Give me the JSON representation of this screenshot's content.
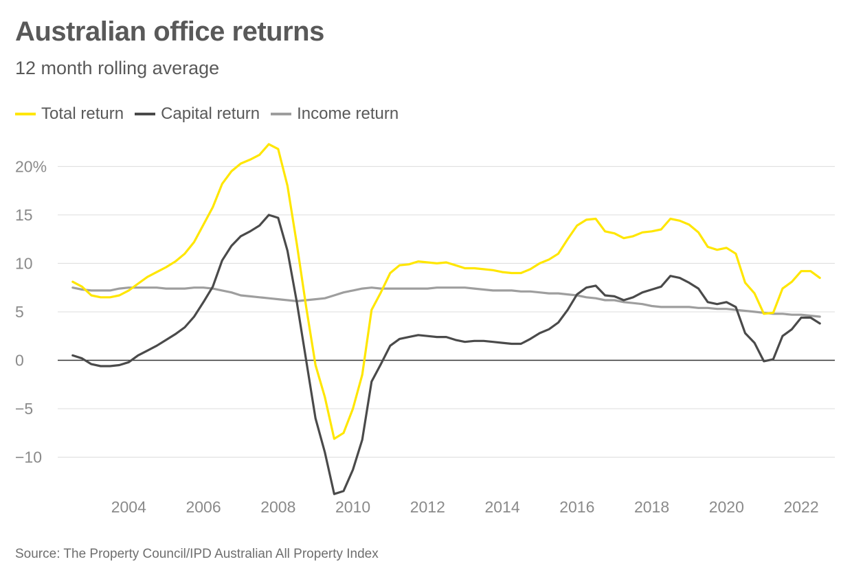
{
  "chart_data": {
    "type": "line",
    "title": "Australian office returns",
    "subtitle": "12 month rolling average",
    "source": "Source: The Property Council/IPD Australian All Property Index",
    "xlabel": "",
    "ylabel": "",
    "xlim": [
      2002.1,
      2022.9
    ],
    "ylim": [
      -14,
      23
    ],
    "y_ticks": [
      -10,
      -5,
      0,
      5,
      10,
      15,
      20
    ],
    "y_tick_labels": [
      "−10",
      "−5",
      "0",
      "5",
      "10",
      "15",
      "20%"
    ],
    "x_ticks": [
      2004,
      2006,
      2008,
      2010,
      2012,
      2014,
      2016,
      2018,
      2020,
      2022
    ],
    "x_tick_labels": [
      "2004",
      "2006",
      "2008",
      "2010",
      "2012",
      "2014",
      "2016",
      "2018",
      "2020",
      "2022"
    ],
    "grid": true,
    "legend_position": "top-left",
    "series": [
      {
        "name": "Total return",
        "color": "#ffe600",
        "x": [
          2002.5,
          2002.75,
          2003.0,
          2003.25,
          2003.5,
          2003.75,
          2004.0,
          2004.25,
          2004.5,
          2004.75,
          2005.0,
          2005.25,
          2005.5,
          2005.75,
          2006.0,
          2006.25,
          2006.5,
          2006.75,
          2007.0,
          2007.25,
          2007.5,
          2007.75,
          2008.0,
          2008.25,
          2008.5,
          2008.75,
          2009.0,
          2009.25,
          2009.5,
          2009.75,
          2010.0,
          2010.25,
          2010.5,
          2010.75,
          2011.0,
          2011.25,
          2011.5,
          2011.75,
          2012.0,
          2012.25,
          2012.5,
          2012.75,
          2013.0,
          2013.25,
          2013.5,
          2013.75,
          2014.0,
          2014.25,
          2014.5,
          2014.75,
          2015.0,
          2015.25,
          2015.5,
          2015.75,
          2016.0,
          2016.25,
          2016.5,
          2016.75,
          2017.0,
          2017.25,
          2017.5,
          2017.75,
          2018.0,
          2018.25,
          2018.5,
          2018.75,
          2019.0,
          2019.25,
          2019.5,
          2019.75,
          2020.0,
          2020.25,
          2020.5,
          2020.75,
          2021.0,
          2021.25,
          2021.5,
          2021.75,
          2022.0,
          2022.25,
          2022.5
        ],
        "values": [
          8.1,
          7.6,
          6.7,
          6.5,
          6.5,
          6.7,
          7.2,
          7.9,
          8.6,
          9.1,
          9.6,
          10.2,
          11.0,
          12.2,
          14.0,
          15.8,
          18.2,
          19.5,
          20.3,
          20.7,
          21.2,
          22.3,
          21.8,
          18.0,
          12.0,
          5.5,
          -0.5,
          -3.8,
          -8.1,
          -7.5,
          -5.0,
          -1.5,
          5.2,
          7.0,
          9.0,
          9.8,
          9.9,
          10.2,
          10.1,
          10.0,
          10.1,
          9.8,
          9.5,
          9.5,
          9.4,
          9.3,
          9.1,
          9.0,
          9.0,
          9.4,
          10.0,
          10.4,
          11.0,
          12.5,
          13.9,
          14.5,
          14.6,
          13.3,
          13.1,
          12.6,
          12.8,
          13.2,
          13.3,
          13.5,
          14.6,
          14.4,
          14.0,
          13.2,
          11.7,
          11.4,
          11.6,
          11.0,
          8.0,
          6.9,
          4.8,
          4.9,
          7.4,
          8.1,
          9.2,
          9.2,
          8.5
        ]
      },
      {
        "name": "Capital return",
        "color": "#4a4a4a",
        "x": [
          2002.5,
          2002.75,
          2003.0,
          2003.25,
          2003.5,
          2003.75,
          2004.0,
          2004.25,
          2004.5,
          2004.75,
          2005.0,
          2005.25,
          2005.5,
          2005.75,
          2006.0,
          2006.25,
          2006.5,
          2006.75,
          2007.0,
          2007.25,
          2007.5,
          2007.75,
          2008.0,
          2008.25,
          2008.5,
          2008.75,
          2009.0,
          2009.25,
          2009.5,
          2009.75,
          2010.0,
          2010.25,
          2010.5,
          2010.75,
          2011.0,
          2011.25,
          2011.5,
          2011.75,
          2012.0,
          2012.25,
          2012.5,
          2012.75,
          2013.0,
          2013.25,
          2013.5,
          2013.75,
          2014.0,
          2014.25,
          2014.5,
          2014.75,
          2015.0,
          2015.25,
          2015.5,
          2015.75,
          2016.0,
          2016.25,
          2016.5,
          2016.75,
          2017.0,
          2017.25,
          2017.5,
          2017.75,
          2018.0,
          2018.25,
          2018.5,
          2018.75,
          2019.0,
          2019.25,
          2019.5,
          2019.75,
          2020.0,
          2020.25,
          2020.5,
          2020.75,
          2021.0,
          2021.25,
          2021.5,
          2021.75,
          2022.0,
          2022.25,
          2022.5
        ],
        "values": [
          0.5,
          0.2,
          -0.4,
          -0.6,
          -0.6,
          -0.5,
          -0.2,
          0.5,
          1.0,
          1.5,
          2.1,
          2.7,
          3.4,
          4.5,
          6.0,
          7.6,
          10.3,
          11.8,
          12.8,
          13.3,
          13.9,
          15.0,
          14.7,
          11.3,
          6.0,
          0.0,
          -6.0,
          -9.5,
          -13.8,
          -13.5,
          -11.3,
          -8.2,
          -2.2,
          -0.4,
          1.5,
          2.2,
          2.4,
          2.6,
          2.5,
          2.4,
          2.4,
          2.1,
          1.9,
          2.0,
          2.0,
          1.9,
          1.8,
          1.7,
          1.7,
          2.2,
          2.8,
          3.2,
          3.9,
          5.2,
          6.8,
          7.5,
          7.7,
          6.7,
          6.6,
          6.2,
          6.5,
          7.0,
          7.3,
          7.6,
          8.7,
          8.5,
          8.0,
          7.4,
          6.0,
          5.8,
          6.0,
          5.5,
          2.8,
          1.8,
          -0.1,
          0.1,
          2.5,
          3.2,
          4.4,
          4.4,
          3.8
        ]
      },
      {
        "name": "Income return",
        "color": "#9e9e9e",
        "x": [
          2002.5,
          2002.75,
          2003.0,
          2003.25,
          2003.5,
          2003.75,
          2004.0,
          2004.25,
          2004.5,
          2004.75,
          2005.0,
          2005.25,
          2005.5,
          2005.75,
          2006.0,
          2006.25,
          2006.5,
          2006.75,
          2007.0,
          2007.25,
          2007.5,
          2007.75,
          2008.0,
          2008.25,
          2008.5,
          2008.75,
          2009.0,
          2009.25,
          2009.5,
          2009.75,
          2010.0,
          2010.25,
          2010.5,
          2010.75,
          2011.0,
          2011.25,
          2011.5,
          2011.75,
          2012.0,
          2012.25,
          2012.5,
          2012.75,
          2013.0,
          2013.25,
          2013.5,
          2013.75,
          2014.0,
          2014.25,
          2014.5,
          2014.75,
          2015.0,
          2015.25,
          2015.5,
          2015.75,
          2016.0,
          2016.25,
          2016.5,
          2016.75,
          2017.0,
          2017.25,
          2017.5,
          2017.75,
          2018.0,
          2018.25,
          2018.5,
          2018.75,
          2019.0,
          2019.25,
          2019.5,
          2019.75,
          2020.0,
          2020.25,
          2020.5,
          2020.75,
          2021.0,
          2021.25,
          2021.5,
          2021.75,
          2022.0,
          2022.25,
          2022.5
        ],
        "values": [
          7.5,
          7.3,
          7.2,
          7.2,
          7.2,
          7.4,
          7.5,
          7.5,
          7.5,
          7.5,
          7.4,
          7.4,
          7.4,
          7.5,
          7.5,
          7.4,
          7.2,
          7.0,
          6.7,
          6.6,
          6.5,
          6.4,
          6.3,
          6.2,
          6.1,
          6.2,
          6.3,
          6.4,
          6.7,
          7.0,
          7.2,
          7.4,
          7.5,
          7.4,
          7.4,
          7.4,
          7.4,
          7.4,
          7.4,
          7.5,
          7.5,
          7.5,
          7.5,
          7.4,
          7.3,
          7.2,
          7.2,
          7.2,
          7.1,
          7.1,
          7.0,
          6.9,
          6.9,
          6.8,
          6.7,
          6.5,
          6.4,
          6.2,
          6.2,
          6.0,
          5.9,
          5.8,
          5.6,
          5.5,
          5.5,
          5.5,
          5.5,
          5.4,
          5.4,
          5.3,
          5.3,
          5.2,
          5.1,
          5.0,
          4.9,
          4.8,
          4.8,
          4.7,
          4.7,
          4.6,
          4.5
        ]
      }
    ]
  }
}
